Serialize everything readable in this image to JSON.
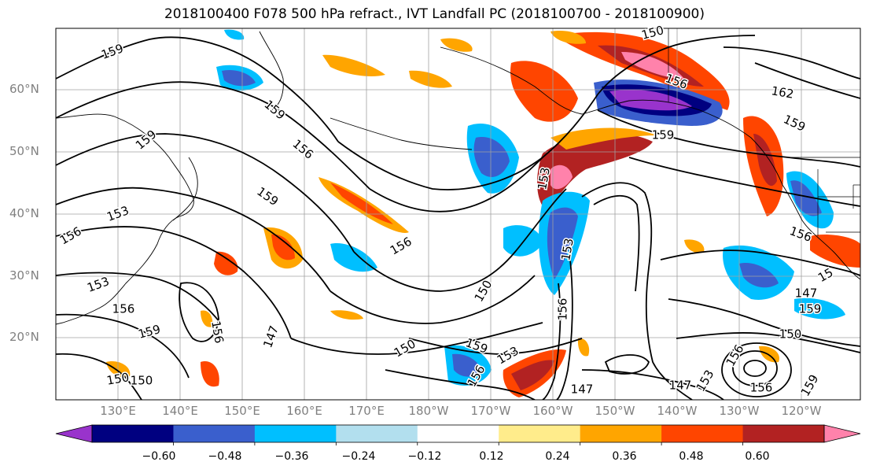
{
  "title": "2018100400 F078 500 hPa refract., IVT Landfall PC (2018100700 - 2018100900)",
  "lat_labels": [
    "60°N",
    "50°N",
    "40°N",
    "30°N",
    "20°N"
  ],
  "lon_labels": [
    "130°E",
    "140°E",
    "150°E",
    "160°E",
    "170°E",
    "180°W",
    "170°W",
    "160°W",
    "150°W",
    "140°W",
    "130°W",
    "120°W"
  ],
  "colorbar": {
    "colors": [
      "#9933cc",
      "#000080",
      "#3a5fcd",
      "#00bfff",
      "#b2dfee",
      "#ffffff",
      "#ffec8b",
      "#ffa500",
      "#ff4500",
      "#b22222",
      "#ff82ab"
    ],
    "tick_labels": [
      "−0.60",
      "−0.48",
      "−0.36",
      "−0.24",
      "−0.12",
      "0.12",
      "0.24",
      "0.36",
      "0.48",
      "0.60"
    ]
  },
  "contour_labels": [
    {
      "text": "159"
    },
    {
      "text": "159"
    },
    {
      "text": "159"
    },
    {
      "text": "156"
    },
    {
      "text": "159"
    },
    {
      "text": "153"
    },
    {
      "text": "156"
    },
    {
      "text": "153"
    },
    {
      "text": "156"
    },
    {
      "text": "159"
    },
    {
      "text": "150"
    },
    {
      "text": "150"
    },
    {
      "text": "156"
    },
    {
      "text": "150"
    },
    {
      "text": "147"
    },
    {
      "text": "156"
    },
    {
      "text": "150"
    },
    {
      "text": "153"
    },
    {
      "text": "159"
    },
    {
      "text": "156"
    },
    {
      "text": "153"
    },
    {
      "text": "147"
    },
    {
      "text": "153"
    },
    {
      "text": "156"
    },
    {
      "text": "150"
    },
    {
      "text": "156"
    },
    {
      "text": "162"
    },
    {
      "text": "159"
    },
    {
      "text": "159"
    },
    {
      "text": "156"
    },
    {
      "text": "147"
    },
    {
      "text": "150"
    },
    {
      "text": "156"
    },
    {
      "text": "153"
    },
    {
      "text": "159"
    },
    {
      "text": "159"
    },
    {
      "text": "156"
    },
    {
      "text": "15"
    },
    {
      "text": "147"
    }
  ]
}
